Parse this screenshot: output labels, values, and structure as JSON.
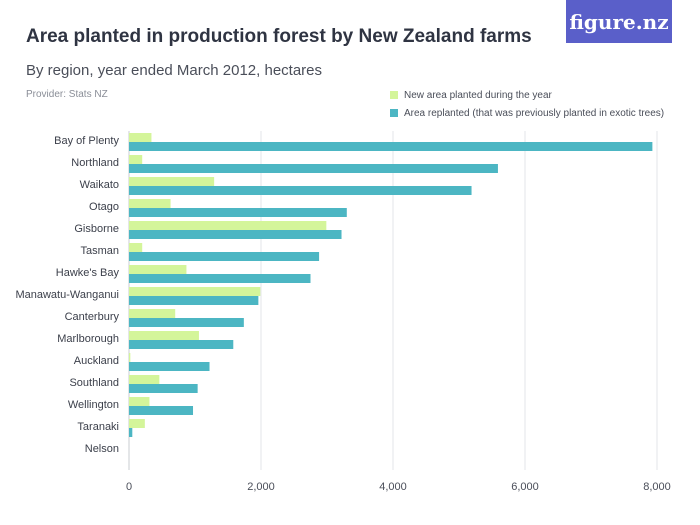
{
  "page": {
    "title": "Area planted in production forest by New Zealand farms",
    "subtitle": "By region, year ended March 2012, hectares",
    "provider": "Provider: Stats NZ",
    "logo_text": "figure.nz"
  },
  "chart_data": {
    "type": "bar",
    "orientation": "horizontal",
    "title": "Area planted in production forest by New Zealand farms",
    "subtitle": "By region, year ended March 2012, hectares",
    "xlabel": "",
    "ylabel": "",
    "xlim": [
      0,
      8000
    ],
    "ticks": [
      0,
      2000,
      4000,
      6000,
      8000
    ],
    "tick_labels": [
      "0",
      "2,000",
      "4,000",
      "6,000",
      "8,000"
    ],
    "grid": "vertical",
    "legend_position": "top-right",
    "categories": [
      "Bay of Plenty",
      "Northland",
      "Waikato",
      "Otago",
      "Gisborne",
      "Tasman",
      "Hawke's Bay",
      "Manawatu-Wanganui",
      "Canterbury",
      "Marlborough",
      "Auckland",
      "Southland",
      "Wellington",
      "Taranaki",
      "Nelson"
    ],
    "series": [
      {
        "name": "New area planted during the year",
        "color": "#d4f59a",
        "values": [
          340,
          200,
          1290,
          630,
          2990,
          200,
          870,
          1990,
          700,
          1060,
          20,
          460,
          310,
          240,
          0
        ]
      },
      {
        "name": "Area replanted (that was previously planted in exotic trees)",
        "color": "#4cb6c3",
        "values": [
          7930,
          5590,
          5190,
          3300,
          3220,
          2880,
          2750,
          1960,
          1740,
          1580,
          1220,
          1040,
          970,
          50,
          0
        ]
      }
    ]
  }
}
